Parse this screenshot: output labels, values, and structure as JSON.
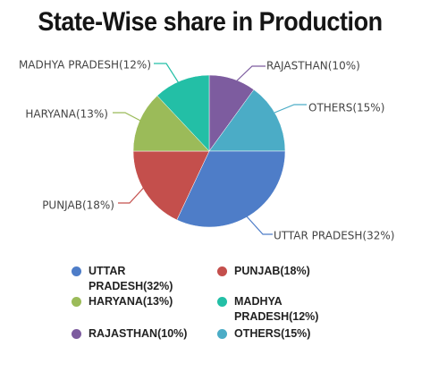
{
  "chart_data": {
    "type": "pie",
    "title": "State-Wise share in Production",
    "slices": [
      {
        "label": "UTTAR PRADESH(32%)",
        "value": 32,
        "color": "#4e7dc8"
      },
      {
        "label": "PUNJAB(18%)",
        "value": 18,
        "color": "#c44f4c"
      },
      {
        "label": "HARYANA(13%)",
        "value": 13,
        "color": "#9bbb59"
      },
      {
        "label": "MADHYA PRADESH(12%)",
        "value": 12,
        "color": "#23bfa6"
      },
      {
        "label": "RAJASTHAN(10%)",
        "value": 10,
        "color": "#7d5c9f"
      },
      {
        "label": "OTHERS(15%)",
        "value": 15,
        "color": "#4bacc6"
      }
    ],
    "legend": {
      "placement": "bottom",
      "items": [
        {
          "label": "UTTAR PRADESH(32%)",
          "color": "#4e7dc8"
        },
        {
          "label": "PUNJAB(18%)",
          "color": "#c44f4c"
        },
        {
          "label": "HARYANA(13%)",
          "color": "#9bbb59"
        },
        {
          "label": "MADHYA PRADESH(12%)",
          "color": "#23bfa6"
        },
        {
          "label": "RAJASTHAN(10%)",
          "color": "#7d5c9f"
        },
        {
          "label": "OTHERS(15%)",
          "color": "#4bacc6"
        }
      ]
    }
  }
}
